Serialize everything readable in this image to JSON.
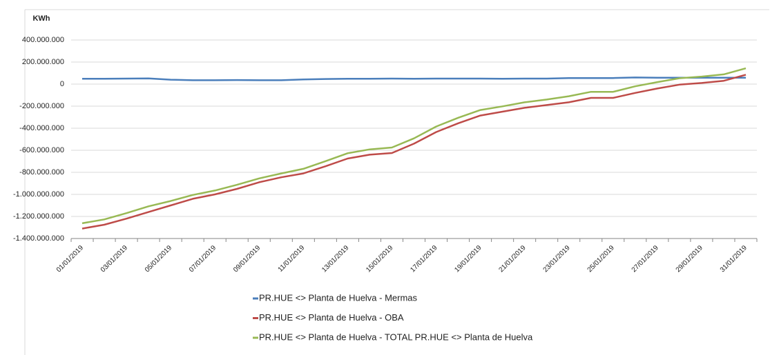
{
  "chart_data": {
    "type": "line",
    "ylabel": "KWh",
    "categories": [
      "01/01/2019",
      null,
      "03/01/2019",
      null,
      "05/01/2019",
      null,
      "07/01/2019",
      null,
      "09/01/2019",
      null,
      "11/01/2019",
      null,
      "13/01/2019",
      null,
      "15/01/2019",
      null,
      "17/01/2019",
      null,
      "19/01/2019",
      null,
      "21/01/2019",
      null,
      "23/01/2019",
      null,
      "25/01/2019",
      null,
      "27/01/2019",
      null,
      "29/01/2019",
      null,
      "31/01/2019"
    ],
    "series": [
      {
        "name": "PR.HUE <> Planta de Huelva - Mermas",
        "color": "#4a7ebb",
        "values": [
          48000000,
          48000000,
          50000000,
          52000000,
          40000000,
          35000000,
          35000000,
          37000000,
          35000000,
          35000000,
          42000000,
          46000000,
          48000000,
          48000000,
          50000000,
          48000000,
          50000000,
          50000000,
          50000000,
          48000000,
          50000000,
          50000000,
          55000000,
          55000000,
          55000000,
          60000000,
          58000000,
          58000000,
          58000000,
          58000000,
          58000000
        ]
      },
      {
        "name": "PR.HUE <> Planta de Huelva - OBA",
        "color": "#be4b48",
        "values": [
          -1310000000,
          -1275000000,
          -1220000000,
          -1160000000,
          -1100000000,
          -1040000000,
          -1000000000,
          -950000000,
          -890000000,
          -845000000,
          -810000000,
          -745000000,
          -675000000,
          -640000000,
          -625000000,
          -540000000,
          -435000000,
          -355000000,
          -285000000,
          -250000000,
          -215000000,
          -190000000,
          -165000000,
          -125000000,
          -125000000,
          -80000000,
          -40000000,
          -5000000,
          10000000,
          30000000,
          85000000
        ]
      },
      {
        "name": "PR.HUE <> Planta de Huelva - TOTAL PR.HUE <> Planta de Huelva",
        "color": "#98b954",
        "values": [
          -1262000000,
          -1227000000,
          -1170000000,
          -1108000000,
          -1060000000,
          -1005000000,
          -965000000,
          -913000000,
          -855000000,
          -810000000,
          -768000000,
          -699000000,
          -627000000,
          -592000000,
          -575000000,
          -492000000,
          -385000000,
          -305000000,
          -235000000,
          -202000000,
          -165000000,
          -140000000,
          -110000000,
          -70000000,
          -70000000,
          -20000000,
          18000000,
          53000000,
          68000000,
          88000000,
          143000000
        ]
      }
    ],
    "ylim": [
      -1400000000,
      400000000
    ],
    "yticks": [
      {
        "value": -1400000000,
        "label": "-1.400.000.000"
      },
      {
        "value": -1200000000,
        "label": "-1.200.000.000"
      },
      {
        "value": -1000000000,
        "label": "-1.000.000.000"
      },
      {
        "value": -800000000,
        "label": "-800.000.000"
      },
      {
        "value": -600000000,
        "label": "-600.000.000"
      },
      {
        "value": -400000000,
        "label": "-400.000.000"
      },
      {
        "value": -200000000,
        "label": "-200.000.000"
      },
      0,
      {
        "value": 200000000,
        "label": "200.000.000"
      },
      {
        "value": 400000000,
        "label": "400.000.000"
      }
    ],
    "grid": true,
    "legend": "bottom"
  }
}
